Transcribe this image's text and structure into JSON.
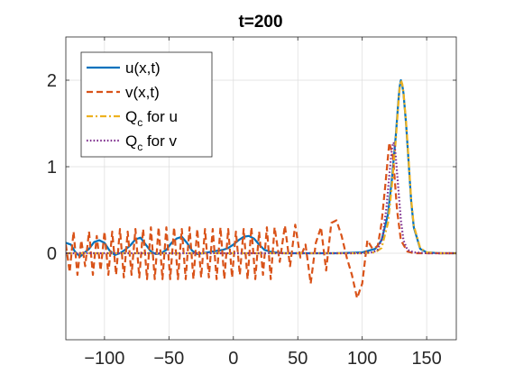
{
  "chart_data": {
    "type": "line",
    "title": "t=200",
    "xlabel": "",
    "ylabel": "",
    "xlim": [
      -130,
      173
    ],
    "ylim": [
      -1.0,
      2.5
    ],
    "xticks": [
      -100,
      -50,
      0,
      50,
      100,
      150
    ],
    "yticks": [
      0,
      1,
      2
    ],
    "grid": true,
    "legend_position": "top-left",
    "series": [
      {
        "name": "u(x,t)",
        "color": "#0072BD",
        "style": "solid",
        "x": [
          -130,
          -126,
          -123,
          -119,
          -116,
          -112,
          -108,
          -104,
          -100,
          -96,
          -92,
          -88,
          -84,
          -80,
          -76,
          -72,
          -68,
          -64,
          -60,
          -56,
          -52,
          -48,
          -44,
          -40,
          -36,
          -32,
          -28,
          -24,
          -20,
          -16,
          -12,
          -8,
          -4,
          0,
          4,
          8,
          12,
          16,
          20,
          24,
          28,
          32,
          40,
          60,
          80,
          100,
          110,
          115,
          120,
          123,
          126,
          128,
          129,
          130,
          131,
          132,
          134,
          136,
          138,
          140,
          145,
          150,
          160,
          173
        ],
        "y": [
          0.12,
          0.1,
          0.02,
          -0.04,
          0.0,
          0.05,
          0.13,
          0.15,
          0.12,
          0.03,
          -0.02,
          0.0,
          0.04,
          0.09,
          0.16,
          0.18,
          0.1,
          0.02,
          -0.01,
          0.0,
          0.04,
          0.12,
          0.17,
          0.19,
          0.12,
          0.03,
          -0.01,
          0.0,
          0.01,
          0.02,
          0.03,
          0.04,
          0.06,
          0.1,
          0.15,
          0.19,
          0.2,
          0.17,
          0.1,
          0.04,
          0.02,
          0.01,
          0.0,
          0.0,
          0.0,
          0.01,
          0.05,
          0.15,
          0.45,
          0.85,
          1.35,
          1.75,
          1.92,
          2.0,
          1.95,
          1.85,
          1.5,
          1.05,
          0.6,
          0.3,
          0.05,
          0.01,
          0.0,
          0.0
        ]
      },
      {
        "name": "v(x,t)",
        "color": "#D95319",
        "style": "dashed",
        "x": [
          -130,
          -127,
          -124,
          -121,
          -118,
          -115,
          -112,
          -109,
          -106,
          -103,
          -100,
          -97,
          -94,
          -91,
          -88,
          -85,
          -82,
          -79,
          -76,
          -73,
          -70,
          -67,
          -64,
          -61,
          -58,
          -55,
          -52,
          -49,
          -46,
          -43,
          -40,
          -37,
          -34,
          -31,
          -28,
          -25,
          -22,
          -19,
          -16,
          -13,
          -10,
          -7,
          -4,
          -1,
          2,
          5,
          8,
          11,
          14,
          17,
          20,
          23,
          26,
          29,
          32,
          36,
          40,
          44,
          48,
          52,
          56,
          60,
          64,
          68,
          72,
          76,
          80,
          84,
          88,
          92,
          96,
          100,
          104,
          108,
          112,
          115,
          118,
          121,
          124,
          127,
          130,
          135,
          140,
          150,
          173
        ],
        "y": [
          0.1,
          -0.22,
          0.25,
          -0.25,
          0.15,
          -0.15,
          0.25,
          -0.25,
          0.2,
          -0.2,
          0.25,
          -0.25,
          0.25,
          -0.25,
          0.28,
          -0.28,
          0.25,
          -0.25,
          0.28,
          -0.28,
          0.28,
          -0.3,
          0.3,
          -0.3,
          0.3,
          -0.3,
          0.3,
          -0.3,
          0.3,
          -0.3,
          0.28,
          -0.3,
          0.3,
          -0.3,
          0.28,
          -0.28,
          0.28,
          -0.28,
          0.28,
          -0.3,
          0.3,
          -0.3,
          0.28,
          -0.28,
          0.25,
          -0.25,
          0.28,
          -0.3,
          0.3,
          -0.3,
          0.25,
          -0.25,
          0.3,
          -0.3,
          0.3,
          -0.1,
          0.32,
          -0.15,
          0.33,
          -0.05,
          0.1,
          -0.35,
          0.12,
          0.3,
          -0.2,
          0.35,
          0.38,
          0.2,
          -0.05,
          -0.25,
          -0.52,
          -0.35,
          0.15,
          0.05,
          0.08,
          0.35,
          0.8,
          1.28,
          1.1,
          0.5,
          0.15,
          0.02,
          0.0,
          0.0,
          0.0
        ]
      },
      {
        "name": "Q_c for u",
        "color": "#EDB120",
        "style": "dashdot",
        "x": [
          -130,
          100,
          110,
          115,
          120,
          123,
          126,
          128,
          129,
          130,
          131,
          132,
          134,
          136,
          138,
          140,
          145,
          150,
          160,
          173
        ],
        "y": [
          0.0,
          0.0,
          0.01,
          0.06,
          0.35,
          0.78,
          1.3,
          1.72,
          1.9,
          2.0,
          1.96,
          1.86,
          1.52,
          1.08,
          0.62,
          0.32,
          0.06,
          0.01,
          0.0,
          0.0
        ]
      },
      {
        "name": "Q_c for v",
        "color": "#7E2F8E",
        "style": "dotted",
        "x": [
          -130,
          100,
          108,
          112,
          116,
          119,
          121,
          123,
          124,
          125,
          126,
          128,
          130,
          132,
          135,
          140,
          150,
          173
        ],
        "y": [
          0.0,
          0.0,
          0.01,
          0.04,
          0.2,
          0.55,
          0.9,
          1.2,
          1.28,
          1.26,
          1.12,
          0.75,
          0.38,
          0.15,
          0.04,
          0.01,
          0.0,
          0.0
        ]
      }
    ],
    "legend": [
      {
        "main": "u(x,t)",
        "sub": ""
      },
      {
        "main": "v(x,t)",
        "sub": ""
      },
      {
        "main": "Q",
        "sub": "c",
        "rest": " for u"
      },
      {
        "main": "Q",
        "sub": "c",
        "rest": " for v"
      }
    ]
  }
}
